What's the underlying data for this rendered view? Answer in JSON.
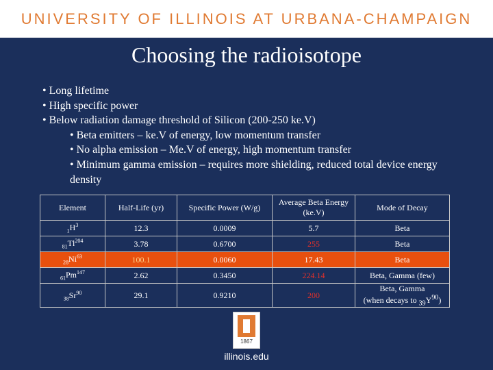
{
  "header": {
    "text": "UNIVERSITY OF ILLINOIS AT URBANA-CHAMPAIGN"
  },
  "slide": {
    "title": "Choosing the radioisotope",
    "bullets": [
      "• Long lifetime",
      "• High specific power",
      "• Below radiation damage threshold of Silicon (200-250 ke.V)",
      "• Beta emitters – ke.V of energy, low momentum transfer",
      "• No alpha emission – Me.V of energy, high momentum transfer",
      "• Minimum gamma emission – requires more shielding, reduced total device energy density"
    ],
    "table": {
      "headers": [
        "Element",
        "Half-Life (yr)",
        "Specific Power (W/g)",
        "Average Beta Energy (ke.V)",
        "Mode of Decay"
      ],
      "rows": [
        {
          "z": "1",
          "sym": "H",
          "a": "3",
          "half": "12.3",
          "power": "0.0009",
          "energy": "5.7",
          "decay": "Beta"
        },
        {
          "z": "81",
          "sym": "Tl",
          "a": "204",
          "half": "3.78",
          "power": "0.6700",
          "energy": "255",
          "decay": "Beta"
        },
        {
          "z": "28",
          "sym": "Ni",
          "a": "63",
          "half": "100.1",
          "power": "0.0060",
          "energy": "17.43",
          "decay": "Beta"
        },
        {
          "z": "61",
          "sym": "Pm",
          "a": "147",
          "half": "2.62",
          "power": "0.3450",
          "energy": "224.14",
          "decay": "Beta, Gamma (few)"
        },
        {
          "z": "38",
          "sym": "Sr",
          "a": "90",
          "half": "29.1",
          "power": "0.9210",
          "energy": "200",
          "decay": "Beta, Gamma",
          "decay_note_pre": "(when decays to ",
          "note_z": "39",
          "note_sym": "Y",
          "note_a": "90",
          "decay_note_post": ")"
        }
      ]
    }
  },
  "logo": {
    "year": "1867"
  },
  "footer": {
    "url": "illinois.edu"
  }
}
